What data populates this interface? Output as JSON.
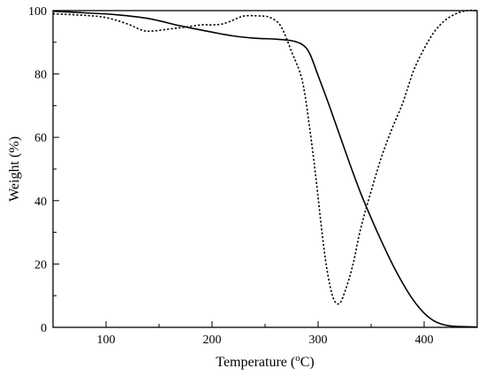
{
  "chart_data": {
    "type": "line",
    "xlabel": "Temperature (",
    "xlabel_super": "o",
    "xlabel_tail": "C)",
    "ylabel": "Weight (%)",
    "xlim": [
      50,
      450
    ],
    "ylim": [
      0,
      100
    ],
    "xticks": [
      {
        "value": 100,
        "label": "100"
      },
      {
        "value": 200,
        "label": "200"
      },
      {
        "value": 300,
        "label": "300"
      },
      {
        "value": 400,
        "label": "400"
      }
    ],
    "yticks": [
      {
        "value": 0,
        "label": "0"
      },
      {
        "value": 20,
        "label": "20"
      },
      {
        "value": 40,
        "label": "40"
      },
      {
        "value": 60,
        "label": "60"
      },
      {
        "value": 80,
        "label": "80"
      },
      {
        "value": 100,
        "label": "100"
      }
    ],
    "minor_x_step": 50,
    "minor_y_step": 10,
    "grid": false,
    "legend": "none",
    "series": [
      {
        "line_style": "solid",
        "color": "#000000",
        "x": [
          50,
          80,
          110,
          140,
          170,
          200,
          220,
          240,
          260,
          275,
          285,
          292,
          300,
          310,
          320,
          330,
          340,
          350,
          360,
          370,
          380,
          390,
          400,
          410,
          420,
          430,
          440,
          450
        ],
        "y": [
          99.8,
          99.3,
          98.7,
          97.5,
          95.2,
          93.2,
          92,
          91.3,
          91,
          90.5,
          89.3,
          86.5,
          79.5,
          70.5,
          61,
          51.5,
          42.5,
          34.5,
          27,
          20,
          13.8,
          8.5,
          4.5,
          1.9,
          0.7,
          0.3,
          0.2,
          0.1
        ]
      },
      {
        "line_style": "dotted",
        "color": "#000000",
        "x": [
          50,
          80,
          100,
          120,
          135,
          145,
          160,
          175,
          190,
          200,
          210,
          220,
          230,
          245,
          255,
          265,
          275,
          285,
          292,
          298,
          303,
          308,
          314,
          320,
          326,
          333,
          340,
          350,
          360,
          370,
          380,
          390,
          400,
          410,
          420,
          430,
          440,
          450
        ],
        "y": [
          99,
          98.5,
          97.8,
          95.8,
          93.7,
          93.6,
          94.2,
          94.8,
          95.5,
          95.5,
          95.8,
          97,
          98.3,
          98.3,
          97.8,
          95,
          87,
          78,
          63,
          47,
          32,
          19,
          9.5,
          7.5,
          12,
          20,
          31,
          43,
          54,
          63,
          71,
          81,
          88,
          93.5,
          97,
          99,
          100,
          100
        ]
      }
    ]
  }
}
